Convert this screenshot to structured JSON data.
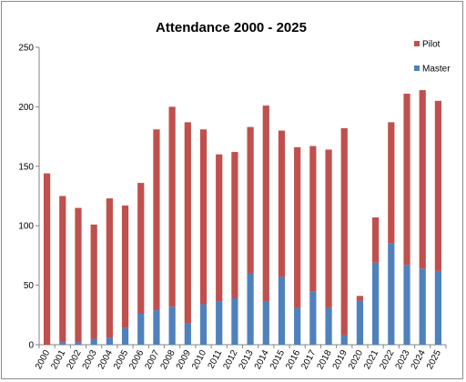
{
  "chart_data": {
    "type": "bar",
    "stacked": true,
    "title": "Attendance  2000 - 2025",
    "xlabel": "",
    "ylabel": "",
    "ylim": [
      0,
      250
    ],
    "yticks": [
      0,
      50,
      100,
      150,
      200,
      250
    ],
    "grid": false,
    "legend_position": "top-right",
    "categories": [
      "2000",
      "2001",
      "2002",
      "2003",
      "2004",
      "2005",
      "2006",
      "2007",
      "2008",
      "2009",
      "2010",
      "2011",
      "2012",
      "2013",
      "2014",
      "2015",
      "2016",
      "2017",
      "2018",
      "2019",
      "2020",
      "2021",
      "2022",
      "2023",
      "2024",
      "2025"
    ],
    "series": [
      {
        "name": "Master",
        "color": "#4f81bd",
        "values": [
          0,
          2,
          2,
          5,
          6,
          14,
          26,
          29,
          32,
          18,
          34,
          36,
          39,
          60,
          36,
          57,
          31,
          45,
          31,
          8,
          37,
          69,
          85,
          67,
          64,
          62
        ]
      },
      {
        "name": "Pilot",
        "color": "#c0504d",
        "values": [
          144,
          123,
          113,
          96,
          117,
          103,
          110,
          152,
          168,
          169,
          147,
          124,
          123,
          123,
          165,
          123,
          135,
          122,
          133,
          174,
          4,
          38,
          102,
          144,
          150,
          143
        ]
      }
    ],
    "legend_order": [
      "Pilot",
      "Master"
    ]
  }
}
